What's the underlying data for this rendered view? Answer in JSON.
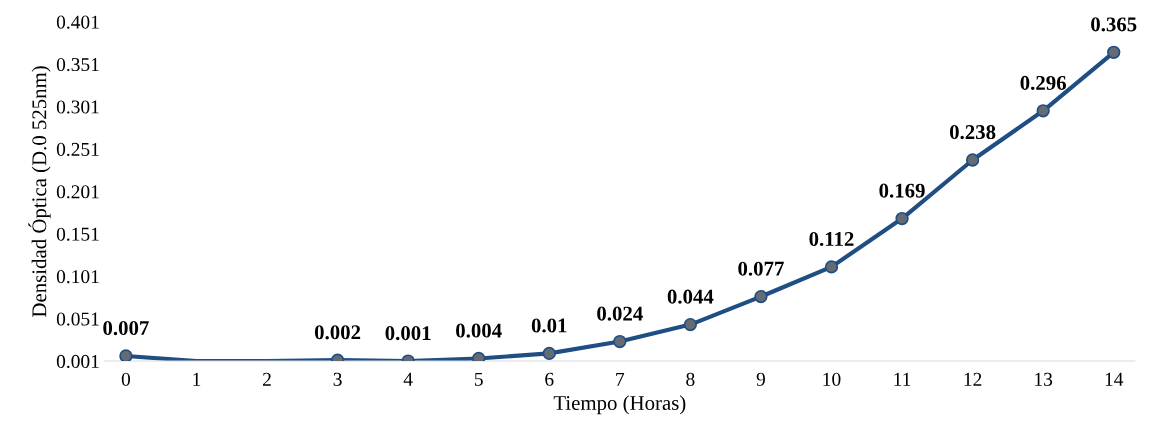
{
  "chart_data": {
    "type": "line",
    "xlabel": "Tiempo (Horas)",
    "ylabel": "Densidad Óptica (D.0 525nm)",
    "xlim": [
      -0.3,
      14.3
    ],
    "xticks": [
      0,
      1,
      2,
      3,
      4,
      5,
      6,
      7,
      8,
      9,
      10,
      11,
      12,
      13,
      14
    ],
    "ylim": [
      0.001,
      0.401
    ],
    "yticks": [
      0.001,
      0.051,
      0.101,
      0.151,
      0.201,
      0.251,
      0.301,
      0.351,
      0.401
    ],
    "grid": false,
    "legend": false,
    "series": [
      {
        "color": "#1f4e85",
        "marker": "none",
        "line_style": "solid",
        "x": [
          0,
          1,
          2,
          3,
          4,
          5,
          6,
          7,
          8,
          9,
          10,
          11,
          12,
          13,
          14
        ],
        "values": [
          0.007,
          0.001,
          0.001,
          0.002,
          0.001,
          0.004,
          0.01,
          0.024,
          0.044,
          0.077,
          0.112,
          0.169,
          0.238,
          0.296,
          0.365
        ]
      },
      {
        "type": "scatter",
        "color": "#656b73",
        "marker": "circle",
        "x": [
          0,
          3,
          4,
          5,
          6,
          7,
          8,
          9,
          10,
          11,
          12,
          13,
          14
        ],
        "values": [
          0.007,
          0.002,
          0.001,
          0.004,
          0.01,
          0.024,
          0.044,
          0.077,
          0.112,
          0.169,
          0.238,
          0.296,
          0.365
        ],
        "value_labels": [
          "0.007",
          "0.002",
          "0.001",
          "0.004",
          "0.01",
          "0.024",
          "0.044",
          "0.077",
          "0.112",
          "0.169",
          "0.238",
          "0.296",
          "0.365"
        ]
      }
    ]
  }
}
